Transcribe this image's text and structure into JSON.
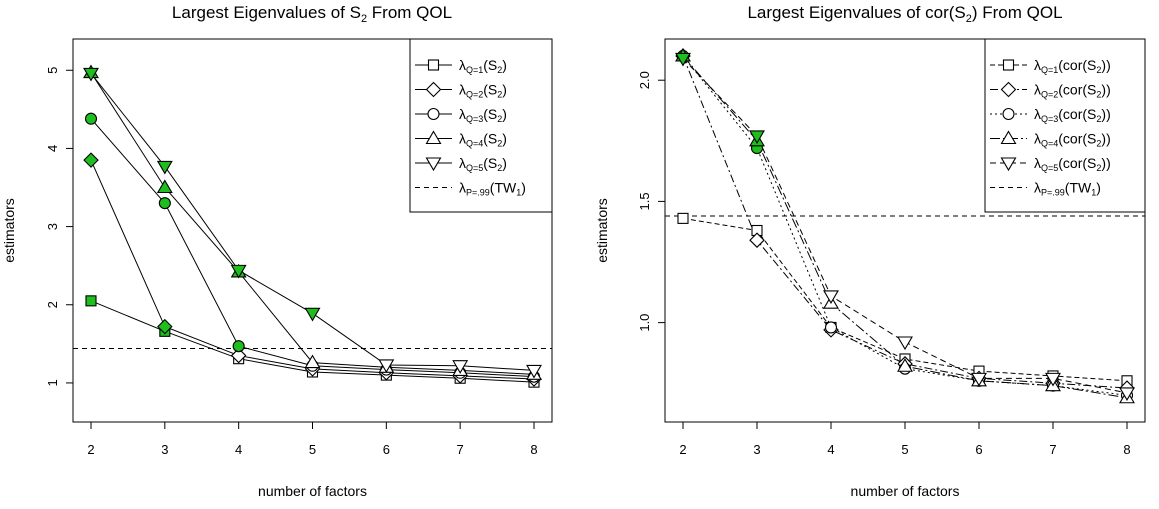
{
  "chart_data": [
    {
      "type": "line",
      "title": {
        "main": "Largest Eigenvalues of S",
        "sub": "2",
        "tail": " From QOL"
      },
      "xlabel": "number of factors",
      "ylabel": "estimators",
      "x": [
        2,
        3,
        4,
        5,
        6,
        7,
        8
      ],
      "xticks": [
        "2",
        "3",
        "4",
        "5",
        "6",
        "7",
        "8"
      ],
      "xlim": [
        2,
        8
      ],
      "ylim": [
        0.5,
        5.4
      ],
      "yticks": [
        "1",
        "2",
        "3",
        "4",
        "5"
      ],
      "yticks_values": [
        1,
        2,
        3,
        4,
        5
      ],
      "grid": false,
      "legend_position": "top-right",
      "reference_line": {
        "y": 1.44,
        "style": "dashed",
        "label": {
          "sym": "λ",
          "sub": "P=.99",
          "arg": "(TW",
          "argsub": "1",
          "close": ")"
        }
      },
      "series": [
        {
          "name": "λQ=1(S2)",
          "label": {
            "sym": "λ",
            "sub": "Q=1",
            "arg": "(S",
            "argsub": "2",
            "close": ")"
          },
          "marker": "square",
          "dash": "",
          "values": [
            2.05,
            1.66,
            1.31,
            1.14,
            1.1,
            1.06,
            1.01
          ],
          "highlighted": [
            true,
            true,
            false,
            false,
            false,
            false,
            false
          ]
        },
        {
          "name": "λQ=2(S2)",
          "label": {
            "sym": "λ",
            "sub": "Q=2",
            "arg": "(S",
            "argsub": "2",
            "close": ")"
          },
          "marker": "diamond",
          "dash": "",
          "values": [
            3.85,
            1.72,
            1.35,
            1.18,
            1.13,
            1.09,
            1.05
          ],
          "highlighted": [
            true,
            true,
            false,
            false,
            false,
            false,
            false
          ]
        },
        {
          "name": "λQ=3(S2)",
          "label": {
            "sym": "λ",
            "sub": "Q=3",
            "arg": "(S",
            "argsub": "2",
            "close": ")"
          },
          "marker": "circle",
          "dash": "",
          "values": [
            4.38,
            3.3,
            1.47,
            1.22,
            1.17,
            1.13,
            1.08
          ],
          "highlighted": [
            true,
            true,
            true,
            false,
            false,
            false,
            false
          ]
        },
        {
          "name": "λQ=4(S2)",
          "label": {
            "sym": "λ",
            "sub": "Q=4",
            "arg": "(S",
            "argsub": "2",
            "close": ")"
          },
          "marker": "triangle-up",
          "dash": "",
          "values": [
            4.97,
            3.5,
            2.42,
            1.26,
            1.2,
            1.16,
            1.11
          ],
          "highlighted": [
            true,
            true,
            true,
            false,
            false,
            false,
            false
          ]
        },
        {
          "name": "λQ=5(S2)",
          "label": {
            "sym": "λ",
            "sub": "Q=5",
            "arg": "(S",
            "argsub": "2",
            "close": ")"
          },
          "marker": "triangle-down",
          "dash": "",
          "values": [
            4.96,
            3.77,
            2.44,
            1.89,
            1.23,
            1.22,
            1.16
          ],
          "highlighted": [
            true,
            true,
            true,
            true,
            false,
            false,
            false
          ]
        }
      ]
    },
    {
      "type": "line",
      "title": {
        "main": "Largest Eigenvalues of cor(S",
        "sub": "2",
        "tail": ") From QOL"
      },
      "xlabel": "number of factors",
      "ylabel": "estimators",
      "x": [
        2,
        3,
        4,
        5,
        6,
        7,
        8
      ],
      "xticks": [
        "2",
        "3",
        "4",
        "5",
        "6",
        "7",
        "8"
      ],
      "xlim": [
        2,
        8
      ],
      "ylim": [
        0.59,
        2.17
      ],
      "yticks": [
        "1.0",
        "1.5",
        "2.0"
      ],
      "yticks_values": [
        1.0,
        1.5,
        2.0
      ],
      "grid": false,
      "legend_position": "top-right",
      "reference_line": {
        "y": 1.44,
        "style": "dashed",
        "label": {
          "sym": "λ",
          "sub": "P=.99",
          "arg": "(TW",
          "argsub": "1",
          "close": ")"
        }
      },
      "series": [
        {
          "name": "λQ=1(cor(S2))",
          "label": {
            "sym": "λ",
            "sub": "Q=1",
            "arg": "(cor(S",
            "argsub": "2",
            "close": "))"
          },
          "marker": "square",
          "dash": "5 3",
          "values": [
            1.43,
            1.38,
            0.98,
            0.85,
            0.8,
            0.78,
            0.76
          ],
          "highlighted": [
            false,
            false,
            false,
            false,
            false,
            false,
            false
          ]
        },
        {
          "name": "λQ=2(cor(S2))",
          "label": {
            "sym": "λ",
            "sub": "Q=2",
            "arg": "(cor(S",
            "argsub": "2",
            "close": "))"
          },
          "marker": "diamond",
          "dash": "8 3 2 3",
          "values": [
            2.1,
            1.34,
            0.97,
            0.83,
            0.77,
            0.75,
            0.73
          ],
          "highlighted": [
            true,
            false,
            false,
            false,
            false,
            false,
            false
          ]
        },
        {
          "name": "λQ=3(cor(S2))",
          "label": {
            "sym": "λ",
            "sub": "Q=3",
            "arg": "(cor(S",
            "argsub": "2",
            "close": "))"
          },
          "marker": "circle",
          "dash": "2 3",
          "values": [
            2.1,
            1.72,
            0.98,
            0.81,
            0.76,
            0.74,
            0.7
          ],
          "highlighted": [
            true,
            true,
            false,
            false,
            false,
            false,
            false
          ]
        },
        {
          "name": "λQ=4(cor(S2))",
          "label": {
            "sym": "λ",
            "sub": "Q=4",
            "arg": "(cor(S",
            "argsub": "2",
            "close": "))"
          },
          "marker": "triangle-up",
          "dash": "10 3 2 3",
          "values": [
            2.1,
            1.75,
            1.08,
            0.82,
            0.76,
            0.74,
            0.69
          ],
          "highlighted": [
            true,
            true,
            false,
            false,
            false,
            false,
            false
          ]
        },
        {
          "name": "λQ=5(cor(S2))",
          "label": {
            "sym": "λ",
            "sub": "Q=5",
            "arg": "(cor(S",
            "argsub": "2",
            "close": "))"
          },
          "marker": "triangle-down",
          "dash": "6 4",
          "values": [
            2.09,
            1.77,
            1.11,
            0.92,
            0.77,
            0.77,
            0.71
          ],
          "highlighted": [
            true,
            true,
            false,
            false,
            false,
            false,
            false
          ]
        }
      ]
    }
  ],
  "colors": {
    "highlight": "#1fbe1f",
    "marker_fill": "#ffffff",
    "line": "#000000"
  }
}
